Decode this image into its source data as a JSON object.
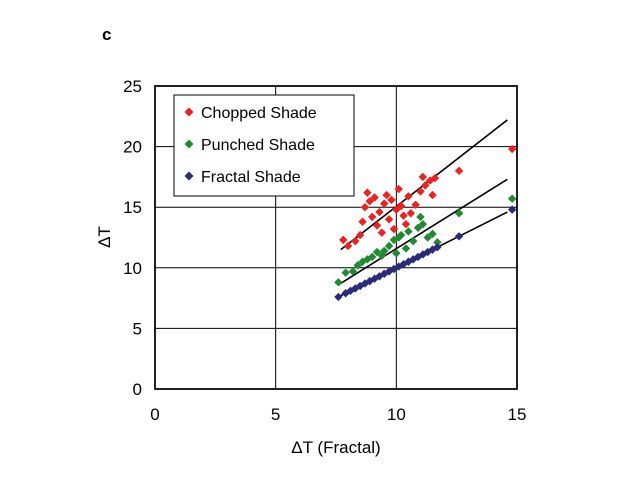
{
  "panel_label": "c",
  "chart_data": {
    "type": "scatter",
    "title": "",
    "xlabel": "ΔT (Fractal)",
    "ylabel": "ΔT",
    "xlim": [
      0,
      15
    ],
    "ylim": [
      0,
      25
    ],
    "x_ticks": [
      "0",
      "5",
      "10",
      "15"
    ],
    "y_ticks": [
      "0",
      "5",
      "10",
      "15",
      "20",
      "25"
    ],
    "grid": true,
    "legend_position": "top-left",
    "series": [
      {
        "name": "Chopped Shade",
        "color": "#ee2020",
        "marker": "diamond",
        "points": [
          [
            7.8,
            12.3
          ],
          [
            8.0,
            11.8
          ],
          [
            8.3,
            12.2
          ],
          [
            8.5,
            12.7
          ],
          [
            8.6,
            13.8
          ],
          [
            8.7,
            15.0
          ],
          [
            8.8,
            16.2
          ],
          [
            8.9,
            15.5
          ],
          [
            9.0,
            14.2
          ],
          [
            9.1,
            15.8
          ],
          [
            9.2,
            13.5
          ],
          [
            9.3,
            14.6
          ],
          [
            9.4,
            12.9
          ],
          [
            9.5,
            15.3
          ],
          [
            9.6,
            16.0
          ],
          [
            9.7,
            14.0
          ],
          [
            9.8,
            15.6
          ],
          [
            9.9,
            13.2
          ],
          [
            10.0,
            14.8
          ],
          [
            10.1,
            16.5
          ],
          [
            10.2,
            15.1
          ],
          [
            10.3,
            14.3
          ],
          [
            10.4,
            13.6
          ],
          [
            10.5,
            15.9
          ],
          [
            10.6,
            14.5
          ],
          [
            10.8,
            15.2
          ],
          [
            11.0,
            16.3
          ],
          [
            11.1,
            17.5
          ],
          [
            11.2,
            16.8
          ],
          [
            11.4,
            17.2
          ],
          [
            11.5,
            16.0
          ],
          [
            11.6,
            17.4
          ],
          [
            12.6,
            18.0
          ],
          [
            14.8,
            19.8
          ]
        ],
        "trend": [
          [
            7.7,
            11.5
          ],
          [
            14.6,
            22.2
          ]
        ]
      },
      {
        "name": "Punched Shade",
        "color": "#1f8a2f",
        "marker": "diamond",
        "points": [
          [
            7.6,
            8.8
          ],
          [
            7.9,
            9.6
          ],
          [
            8.2,
            9.7
          ],
          [
            8.4,
            10.2
          ],
          [
            8.6,
            10.5
          ],
          [
            8.8,
            10.7
          ],
          [
            9.0,
            10.9
          ],
          [
            9.2,
            11.3
          ],
          [
            9.4,
            11.0
          ],
          [
            9.5,
            11.4
          ],
          [
            9.7,
            11.8
          ],
          [
            9.9,
            12.3
          ],
          [
            10.0,
            11.2
          ],
          [
            10.1,
            12.5
          ],
          [
            10.2,
            12.7
          ],
          [
            10.4,
            11.6
          ],
          [
            10.5,
            13.0
          ],
          [
            10.7,
            12.2
          ],
          [
            10.9,
            13.3
          ],
          [
            11.0,
            14.2
          ],
          [
            11.1,
            13.6
          ],
          [
            11.3,
            12.5
          ],
          [
            11.5,
            12.8
          ],
          [
            11.7,
            12.1
          ],
          [
            12.6,
            14.5
          ],
          [
            14.8,
            15.7
          ]
        ],
        "trend": [
          [
            7.6,
            8.6
          ],
          [
            14.6,
            17.3
          ]
        ]
      },
      {
        "name": "Fractal Shade",
        "color": "#2a2a7a",
        "marker": "diamond",
        "points": [
          [
            7.6,
            7.6
          ],
          [
            7.9,
            7.9
          ],
          [
            8.1,
            8.1
          ],
          [
            8.3,
            8.3
          ],
          [
            8.5,
            8.5
          ],
          [
            8.7,
            8.7
          ],
          [
            8.9,
            8.9
          ],
          [
            9.1,
            9.1
          ],
          [
            9.3,
            9.3
          ],
          [
            9.5,
            9.5
          ],
          [
            9.7,
            9.7
          ],
          [
            9.9,
            9.9
          ],
          [
            10.1,
            10.1
          ],
          [
            10.3,
            10.3
          ],
          [
            10.5,
            10.5
          ],
          [
            10.7,
            10.7
          ],
          [
            10.9,
            10.9
          ],
          [
            11.1,
            11.1
          ],
          [
            11.3,
            11.3
          ],
          [
            11.5,
            11.5
          ],
          [
            11.7,
            11.7
          ],
          [
            12.6,
            12.6
          ],
          [
            14.8,
            14.8
          ]
        ],
        "trend": [
          [
            7.6,
            7.6
          ],
          [
            14.6,
            14.6
          ]
        ]
      }
    ]
  }
}
